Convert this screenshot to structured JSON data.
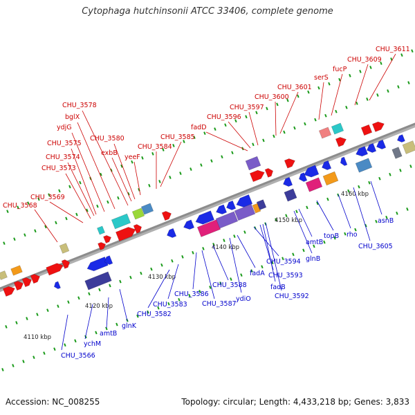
{
  "title": "Cytophaga hutchinsonii ATCC 33406, complete genome",
  "accession": "Accession: NC_008255",
  "summary": "Topology: circular; Length: 4,433,218 bp; Genes: 3,833",
  "colors": {
    "forward": "#ee1111",
    "forward_light": "#f08080",
    "reverse": "#1a2ae6",
    "reverse_dark": "#3c3c9a",
    "purple": "#7a5cc8",
    "magenta": "#e0207a",
    "cyan": "#2bc8c8",
    "steel": "#4a8ac4",
    "orange": "#f39a1a",
    "khaki": "#c8be7a",
    "lime": "#9ad83a",
    "slate": "#707888",
    "tick": "#1a9a1a",
    "axis": "#8c8c8c",
    "forward_label": "#cc0000",
    "reverse_label": "#0000cc"
  },
  "scale_labels": [
    "4110 kbp",
    "4120 kbp",
    "4130 kbp",
    "4140 kbp",
    "4150 kbp",
    "4160 kbp"
  ],
  "forward_genes": [
    "CHU_3568",
    "CHU_3569",
    "CHU_3573",
    "CHU_3574",
    "CHU_3575",
    "ydjG",
    "bglX",
    "CHU_3578",
    "exbB",
    "CHU_3580",
    "yeeF",
    "CHU_3584",
    "CHU_3585",
    "fadD",
    "CHU_3596",
    "CHU_3597",
    "CHU_3600",
    "CHU_3601",
    "serS",
    "fucP",
    "CHU_3609",
    "CHU_3611"
  ],
  "reverse_genes": [
    "CHU_3566",
    "ychM",
    "amtB",
    "glnK",
    "CHU_3582",
    "CHU_3583",
    "CHU_3586",
    "CHU_3587",
    "CHU_3588",
    "ydiO",
    "fadA",
    "CHU_3594",
    "CHU_3593",
    "fadB",
    "CHU_3592",
    "glnB",
    "amtB",
    "topB",
    "rho",
    "CHU_3605",
    "asnB"
  ]
}
